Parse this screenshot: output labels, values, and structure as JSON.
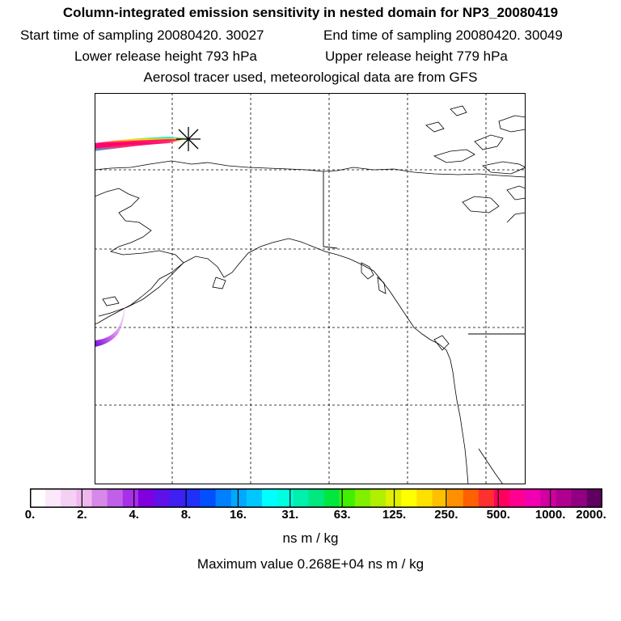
{
  "title": "Column-integrated emission sensitivity in nested domain for NP3_20080419",
  "header": {
    "start_time": "Start time of sampling 20080420. 30027",
    "end_time": "End time of sampling 20080420. 30049",
    "lower_release": "Lower release height  793 hPa",
    "upper_release": "Upper release height  779 hPa",
    "tracer_note": "Aerosol tracer used, meteorological data are from GFS"
  },
  "colorbar": {
    "tick_labels": [
      "0.",
      "2.",
      "4.",
      "8.",
      "16.",
      "31.",
      "63.",
      "125.",
      "250.",
      "500.",
      "1000.",
      "2000."
    ],
    "tick_values": [
      0,
      2,
      4,
      8,
      16,
      31,
      63,
      125,
      250,
      500,
      1000,
      2000
    ],
    "colors": [
      "#ffffff",
      "#fbe8fb",
      "#f5d0f5",
      "#eeb8ee",
      "#d888e8",
      "#c060e8",
      "#a830e8",
      "#8000e0",
      "#6010e8",
      "#4020f0",
      "#2030f8",
      "#0050ff",
      "#0080ff",
      "#00a8ff",
      "#00c8ff",
      "#00ffff",
      "#00ffe0",
      "#00f0b0",
      "#00e880",
      "#00e840",
      "#40f000",
      "#80f000",
      "#b0f000",
      "#e0f000",
      "#ffff00",
      "#ffe000",
      "#ffc000",
      "#ff9000",
      "#ff6000",
      "#ff3030",
      "#ff0060",
      "#ff0090",
      "#f000b0",
      "#d000a0",
      "#b00090",
      "#900080",
      "#600060"
    ],
    "units": "ns m / kg"
  },
  "max_value_text": "Maximum value  0.268E+04 ns m / kg"
}
